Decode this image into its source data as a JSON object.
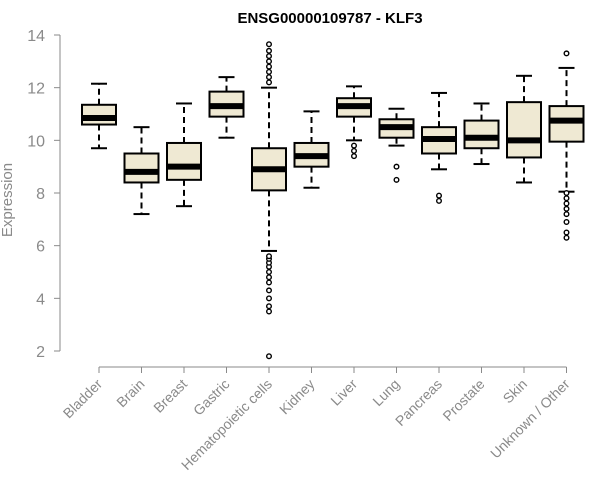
{
  "chart_data": {
    "type": "box",
    "title": "ENSG00000109787 - KLF3",
    "xlabel": "",
    "ylabel": "Expression",
    "ylim": [
      2,
      14
    ],
    "yticks": [
      2,
      4,
      6,
      8,
      10,
      12,
      14
    ],
    "grid": false,
    "legend": "none",
    "box_fill": "#efe9d3",
    "box_stroke": "#000000",
    "categories": [
      "Bladder",
      "Brain",
      "Breast",
      "Gastric",
      "Hematopoietic cells",
      "Kidney",
      "Liver",
      "Lung",
      "Pancreas",
      "Prostate",
      "Skin",
      "Unknown / Other"
    ],
    "boxes": [
      {
        "category": "Bladder",
        "whisker_low": 9.7,
        "q1": 10.6,
        "median": 10.85,
        "q3": 11.35,
        "whisker_high": 12.15,
        "outliers": []
      },
      {
        "category": "Brain",
        "whisker_low": 7.2,
        "q1": 8.4,
        "median": 8.8,
        "q3": 9.5,
        "whisker_high": 10.5,
        "outliers": []
      },
      {
        "category": "Breast",
        "whisker_low": 7.5,
        "q1": 8.5,
        "median": 9.0,
        "q3": 9.9,
        "whisker_high": 11.4,
        "outliers": []
      },
      {
        "category": "Gastric",
        "whisker_low": 10.1,
        "q1": 10.9,
        "median": 11.3,
        "q3": 11.85,
        "whisker_high": 12.4,
        "outliers": []
      },
      {
        "category": "Hematopoietic cells",
        "whisker_low": 5.8,
        "q1": 8.1,
        "median": 8.9,
        "q3": 9.7,
        "whisker_high": 12.0,
        "outliers": [
          1.8,
          3.5,
          3.7,
          4.0,
          4.3,
          4.6,
          4.8,
          5.0,
          5.2,
          5.35,
          5.5,
          5.6,
          12.2,
          12.4,
          12.6,
          12.8,
          13.0,
          13.2,
          13.4,
          13.65
        ]
      },
      {
        "category": "Kidney",
        "whisker_low": 8.2,
        "q1": 9.0,
        "median": 9.4,
        "q3": 9.9,
        "whisker_high": 11.1,
        "outliers": []
      },
      {
        "category": "Liver",
        "whisker_low": 10.0,
        "q1": 10.9,
        "median": 11.3,
        "q3": 11.6,
        "whisker_high": 12.05,
        "outliers": [
          9.4,
          9.6,
          9.8
        ]
      },
      {
        "category": "Lung",
        "whisker_low": 9.8,
        "q1": 10.1,
        "median": 10.5,
        "q3": 10.8,
        "whisker_high": 11.2,
        "outliers": [
          8.5,
          9.0
        ]
      },
      {
        "category": "Pancreas",
        "whisker_low": 8.9,
        "q1": 9.5,
        "median": 10.05,
        "q3": 10.5,
        "whisker_high": 11.8,
        "outliers": [
          7.7,
          7.9
        ]
      },
      {
        "category": "Prostate",
        "whisker_low": 9.1,
        "q1": 9.7,
        "median": 10.1,
        "q3": 10.75,
        "whisker_high": 11.4,
        "outliers": []
      },
      {
        "category": "Skin",
        "whisker_low": 8.4,
        "q1": 9.35,
        "median": 10.0,
        "q3": 11.45,
        "whisker_high": 12.45,
        "outliers": []
      },
      {
        "category": "Unknown / Other",
        "whisker_low": 8.05,
        "q1": 9.95,
        "median": 10.75,
        "q3": 11.3,
        "whisker_high": 12.75,
        "outliers": [
          6.3,
          6.5,
          6.9,
          7.2,
          7.4,
          7.6,
          7.8,
          8.0,
          13.3
        ]
      }
    ]
  }
}
